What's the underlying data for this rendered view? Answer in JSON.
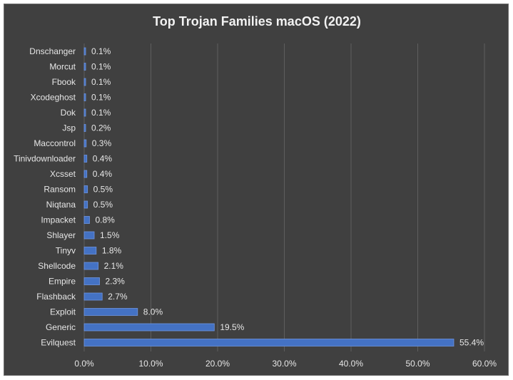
{
  "chart_data": {
    "type": "bar",
    "orientation": "horizontal",
    "title": "Top Trojan Families macOS (2022)",
    "xlabel": "",
    "ylabel": "",
    "xlim": [
      0,
      60
    ],
    "x_ticks": [
      "0.0%",
      "10.0%",
      "20.0%",
      "30.0%",
      "40.0%",
      "50.0%",
      "60.0%"
    ],
    "grid": true,
    "legend": "none",
    "categories": [
      "Dnschanger",
      "Morcut",
      "Fbook",
      "Xcodeghost",
      "Dok",
      "Jsp",
      "Maccontrol",
      "Tinivdownloader",
      "Xcsset",
      "Ransom",
      "Niqtana",
      "Impacket",
      "Shlayer",
      "Tinyv",
      "Shellcode",
      "Empire",
      "Flashback",
      "Exploit",
      "Generic",
      "Evilquest"
    ],
    "values": [
      0.1,
      0.1,
      0.1,
      0.1,
      0.1,
      0.2,
      0.3,
      0.4,
      0.4,
      0.5,
      0.5,
      0.8,
      1.5,
      1.8,
      2.1,
      2.3,
      2.7,
      8.0,
      19.5,
      55.4
    ],
    "value_labels": [
      "0.1%",
      "0.1%",
      "0.1%",
      "0.1%",
      "0.1%",
      "0.2%",
      "0.3%",
      "0.4%",
      "0.4%",
      "0.5%",
      "0.5%",
      "0.8%",
      "1.5%",
      "1.8%",
      "2.1%",
      "2.3%",
      "2.7%",
      "8.0%",
      "19.5%",
      "55.4%"
    ],
    "colors": {
      "background": "#404040",
      "bar": "#4472c4",
      "text": "#e6e6e6",
      "grid": "#5e5e5e"
    }
  }
}
